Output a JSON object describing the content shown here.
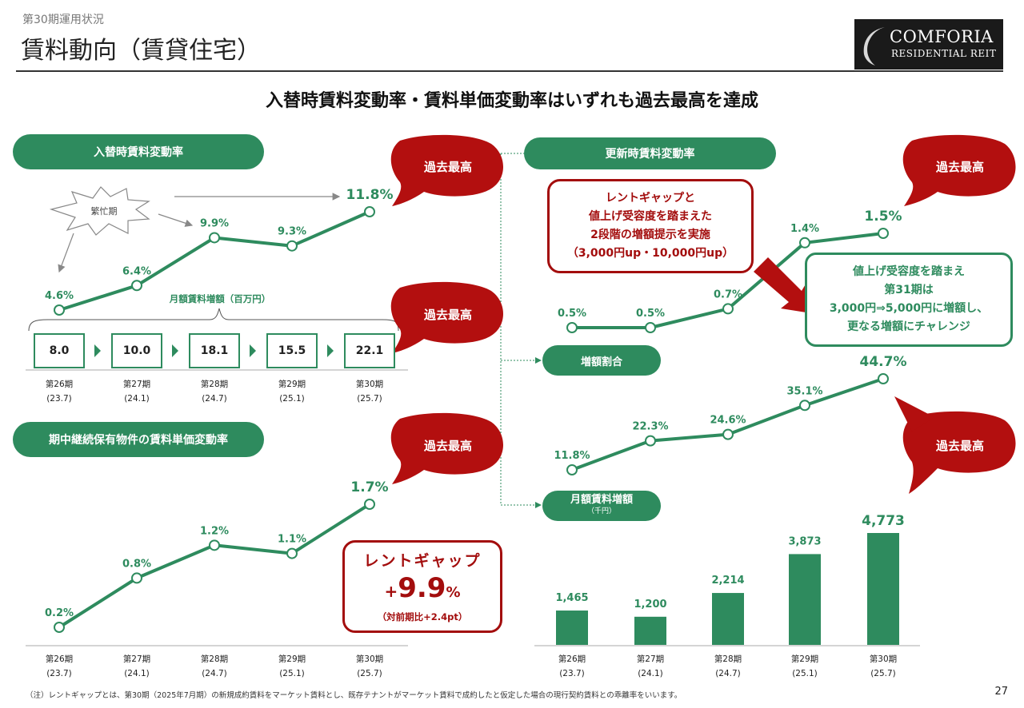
{
  "header": {
    "section": "第30期運用状況",
    "title": "賃料動向（賃貸住宅）",
    "logo_main": "COMFORIA",
    "logo_sub": "RESIDENTIAL REIT"
  },
  "headline": "入替時賃料変動率・賃料単価変動率はいずれも過去最高を達成",
  "record_label": "過去最高",
  "busy_label": "繁忙期",
  "periods": [
    {
      "label": "第26期",
      "date": "(23.7)"
    },
    {
      "label": "第27期",
      "date": "(24.1)"
    },
    {
      "label": "第28期",
      "date": "(24.7)"
    },
    {
      "label": "第29期",
      "date": "(25.1)"
    },
    {
      "label": "第30期",
      "date": "(25.7)"
    }
  ],
  "replacement": {
    "title": "入替時賃料変動率",
    "increase_caption": "月額賃料増額（百万円）",
    "increase_values": [
      "8.0",
      "10.0",
      "18.1",
      "15.5",
      "22.1"
    ]
  },
  "unit_price": {
    "title": "期中継続保有物件の賃料単価変動率",
    "rent_gap_title": "レントギャップ",
    "rent_gap_sign": "+",
    "rent_gap_value": "9.9",
    "rent_gap_unit": "%",
    "rent_gap_note": "（対前期比+2.4pt）"
  },
  "renewal": {
    "title": "更新時賃料変動率",
    "callout_red": [
      "レントギャップと",
      "値上げ受容度を踏まえた",
      "2段階の増額提示を実施",
      "（3,000円up・10,000円up）"
    ],
    "callout_green": [
      "値上げ受容度を踏まえ",
      "第31期は",
      "3,000円⇒5,000円に増額し、",
      "更なる増額にチャレンジ"
    ],
    "ratio_title": "増額割合",
    "monthly_title": "月額賃料増額",
    "monthly_unit": "（千円）"
  },
  "chart_data": [
    {
      "type": "line",
      "title": "入替時賃料変動率",
      "categories": [
        "第26期",
        "第27期",
        "第28期",
        "第29期",
        "第30期"
      ],
      "values": [
        4.6,
        6.4,
        9.9,
        9.3,
        11.8
      ],
      "labels": [
        "4.6%",
        "6.4%",
        "9.9%",
        "9.3%",
        "11.8%"
      ]
    },
    {
      "type": "line",
      "title": "期中継続保有物件の賃料単価変動率",
      "categories": [
        "第26期",
        "第27期",
        "第28期",
        "第29期",
        "第30期"
      ],
      "values": [
        0.2,
        0.8,
        1.2,
        1.1,
        1.7
      ],
      "labels": [
        "0.2%",
        "0.8%",
        "1.2%",
        "1.1%",
        "1.7%"
      ]
    },
    {
      "type": "line",
      "title": "更新時賃料変動率",
      "categories": [
        "第26期",
        "第27期",
        "第28期",
        "第29期",
        "第30期"
      ],
      "values": [
        0.5,
        0.5,
        0.7,
        1.4,
        1.5
      ],
      "labels": [
        "0.5%",
        "0.5%",
        "0.7%",
        "1.4%",
        "1.5%"
      ]
    },
    {
      "type": "line",
      "title": "増額割合",
      "categories": [
        "第26期",
        "第27期",
        "第28期",
        "第29期",
        "第30期"
      ],
      "values": [
        11.8,
        22.3,
        24.6,
        35.1,
        44.7
      ],
      "labels": [
        "11.8%",
        "22.3%",
        "24.6%",
        "35.1%",
        "44.7%"
      ]
    },
    {
      "type": "bar",
      "title": "月額賃料増額",
      "categories": [
        "第26期",
        "第27期",
        "第28期",
        "第29期",
        "第30期"
      ],
      "values": [
        1465,
        1200,
        2214,
        3873,
        4773
      ],
      "labels": [
        "1,465",
        "1,200",
        "2,214",
        "3,873",
        "4,773"
      ]
    }
  ],
  "footnote": "（注）レントギャップとは、第30期（2025年7月期）の新規成約賃料をマーケット賃料とし、既存テナントがマーケット賃料で成約したと仮定した場合の現行契約賃料との乖離率をいいます。",
  "page_number": "27",
  "colors": {
    "green": "#2e8b5e",
    "red": "#a30d0d"
  }
}
